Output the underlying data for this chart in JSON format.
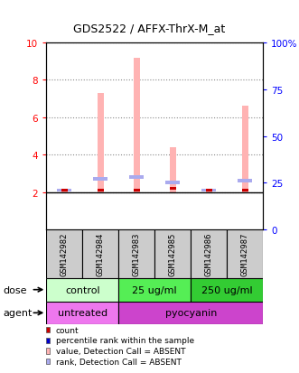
{
  "title": "GDS2522 / AFFX-ThrX-M_at",
  "samples": [
    "GSM142982",
    "GSM142984",
    "GSM142983",
    "GSM142985",
    "GSM142986",
    "GSM142987"
  ],
  "bar_values": [
    2.1,
    7.3,
    9.2,
    4.4,
    2.1,
    6.6
  ],
  "rank_values": [
    2.1,
    2.72,
    2.82,
    2.52,
    2.1,
    2.62
  ],
  "count_values": [
    2.1,
    2.1,
    2.1,
    2.2,
    2.1,
    2.1
  ],
  "bar_color": "#ffb3b3",
  "rank_color": "#aaaaee",
  "count_color": "#cc0000",
  "percentile_color": "#0000cc",
  "ylim_left": [
    0,
    10
  ],
  "ylim_right": [
    0,
    100
  ],
  "yticks_left": [
    2,
    4,
    6,
    8,
    10
  ],
  "ytick_labels_left": [
    "2",
    "4",
    "6",
    "8",
    "10"
  ],
  "yticks_right": [
    0,
    25,
    50,
    75,
    100
  ],
  "ytick_labels_right": [
    "0",
    "25",
    "50",
    "75",
    "100%"
  ],
  "dose_groups": [
    {
      "label": "control",
      "span": [
        0,
        2
      ],
      "color": "#ccffcc"
    },
    {
      "label": "25 ug/ml",
      "span": [
        2,
        4
      ],
      "color": "#55ee55"
    },
    {
      "label": "250 ug/ml",
      "span": [
        4,
        6
      ],
      "color": "#33cc33"
    }
  ],
  "agent_groups": [
    {
      "label": "untreated",
      "span": [
        0,
        2
      ],
      "color": "#ee77ee"
    },
    {
      "label": "pyocyanin",
      "span": [
        2,
        6
      ],
      "color": "#cc44cc"
    }
  ],
  "legend_items": [
    {
      "color": "#cc0000",
      "label": "count"
    },
    {
      "color": "#0000cc",
      "label": "percentile rank within the sample"
    },
    {
      "color": "#ffb3b3",
      "label": "value, Detection Call = ABSENT"
    },
    {
      "color": "#aaaaee",
      "label": "rank, Detection Call = ABSENT"
    }
  ]
}
